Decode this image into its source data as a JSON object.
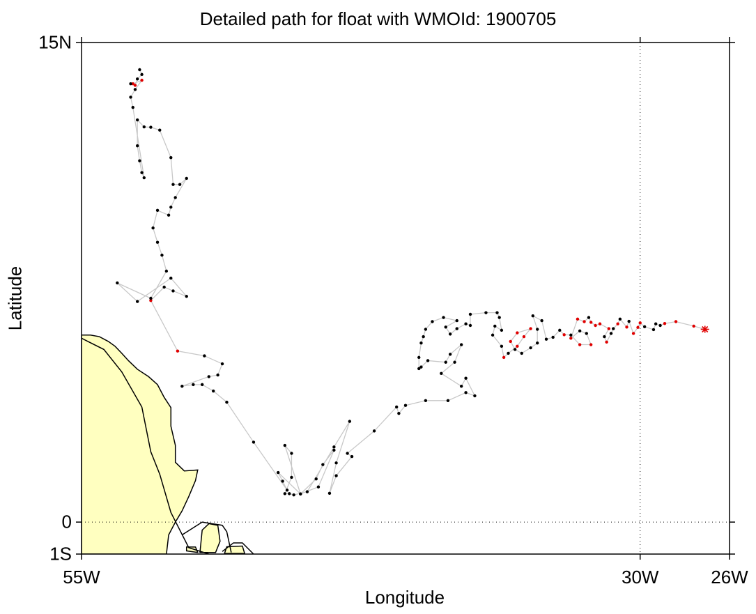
{
  "chart_data": {
    "type": "scatter",
    "title": "Detailed path for float with WMOId: 1900705",
    "xlabel": "Longitude",
    "ylabel": "Latitude",
    "xlim": [
      -55,
      -26
    ],
    "ylim": [
      -1,
      15
    ],
    "x_ticks": [
      {
        "value": -55,
        "label": "55W"
      },
      {
        "value": -30,
        "label": "30W"
      },
      {
        "value": -26,
        "label": "26W"
      }
    ],
    "y_ticks": [
      {
        "value": 15,
        "label": "15N"
      },
      {
        "value": 0,
        "label": "0"
      },
      {
        "value": -1,
        "label": "1S"
      }
    ],
    "gridlines": [
      {
        "axis": "x",
        "value": -30,
        "style": "dotted"
      },
      {
        "axis": "y",
        "value": 0,
        "style": "dotted"
      }
    ],
    "colors": {
      "land": "#ffffc0",
      "track": "#c8c8c8",
      "normal_point": "#000000",
      "highlight_point": "#e00000",
      "start_marker": "#e00000"
    },
    "series": [
      {
        "points": [
          [
            -27.1,
            6.03
          ],
          [
            -27.6,
            6.13
          ],
          [
            -28.4,
            6.27
          ],
          [
            -28.9,
            6.21
          ],
          [
            -29.1,
            6.15
          ],
          [
            -29.3,
            6.2
          ],
          [
            -29.4,
            6.02
          ],
          [
            -29.8,
            6.11
          ],
          [
            -30.0,
            6.23
          ],
          [
            -30.1,
            6.09
          ],
          [
            -30.3,
            5.9
          ],
          [
            -30.5,
            6.28
          ],
          [
            -30.6,
            6.1
          ],
          [
            -30.9,
            6.35
          ],
          [
            -31.0,
            6.2
          ],
          [
            -31.2,
            6.05
          ],
          [
            -31.3,
            5.9
          ],
          [
            -31.5,
            5.63
          ],
          [
            -31.6,
            5.8
          ],
          [
            -31.4,
            6.05
          ],
          [
            -31.8,
            6.2
          ],
          [
            -32.0,
            6.15
          ],
          [
            -32.2,
            6.25
          ],
          [
            -32.3,
            6.4
          ],
          [
            -32.5,
            6.27
          ],
          [
            -32.8,
            6.35
          ],
          [
            -33.1,
            5.75
          ],
          [
            -32.7,
            5.98
          ],
          [
            -32.4,
            5.9
          ],
          [
            -32.2,
            5.55
          ],
          [
            -32.7,
            5.55
          ],
          [
            -33.1,
            5.85
          ],
          [
            -33.4,
            5.86
          ],
          [
            -33.6,
            6.0
          ],
          [
            -33.9,
            5.78
          ],
          [
            -34.2,
            5.72
          ],
          [
            -34.4,
            6.3
          ],
          [
            -34.8,
            6.45
          ],
          [
            -34.6,
            6.03
          ],
          [
            -34.6,
            5.6
          ],
          [
            -34.9,
            5.45
          ],
          [
            -35.3,
            5.28
          ],
          [
            -35.6,
            5.4
          ],
          [
            -35.8,
            5.65
          ],
          [
            -35.5,
            5.92
          ],
          [
            -34.9,
            6.05
          ],
          [
            -35.2,
            5.8
          ],
          [
            -35.5,
            5.5
          ],
          [
            -35.9,
            5.28
          ],
          [
            -36.1,
            5.15
          ],
          [
            -36.2,
            5.5
          ],
          [
            -36.6,
            5.85
          ],
          [
            -36.5,
            6.13
          ],
          [
            -36.2,
            6.0
          ],
          [
            -36.3,
            6.4
          ],
          [
            -36.4,
            6.55
          ],
          [
            -36.9,
            6.55
          ],
          [
            -37.6,
            6.5
          ],
          [
            -37.6,
            6.15
          ],
          [
            -37.8,
            6.2
          ],
          [
            -38.2,
            6.05
          ],
          [
            -38.5,
            5.88
          ],
          [
            -38.7,
            6.1
          ],
          [
            -38.2,
            6.3
          ],
          [
            -38.8,
            6.4
          ],
          [
            -39.3,
            6.27
          ],
          [
            -39.6,
            6.03
          ],
          [
            -39.7,
            5.8
          ],
          [
            -39.8,
            5.6
          ],
          [
            -39.9,
            5.15
          ],
          [
            -39.9,
            4.8
          ],
          [
            -39.8,
            4.85
          ],
          [
            -39.5,
            5.05
          ],
          [
            -38.7,
            5.0
          ],
          [
            -38.5,
            5.25
          ],
          [
            -38.0,
            5.55
          ],
          [
            -38.3,
            5.0
          ],
          [
            -38.9,
            4.65
          ],
          [
            -38.0,
            4.25
          ],
          [
            -37.8,
            4.5
          ],
          [
            -37.4,
            3.95
          ],
          [
            -37.8,
            4.05
          ],
          [
            -38.6,
            3.8
          ],
          [
            -39.6,
            3.8
          ],
          [
            -40.5,
            3.65
          ],
          [
            -40.8,
            3.4
          ],
          [
            -40.9,
            3.6
          ],
          [
            -41.9,
            2.85
          ],
          [
            -43.1,
            2.15
          ],
          [
            -42.9,
            2.05
          ],
          [
            -43.6,
            1.45
          ],
          [
            -43.9,
            0.9
          ],
          [
            -43.6,
            1.85
          ],
          [
            -43.0,
            3.15
          ],
          [
            -43.7,
            2.35
          ],
          [
            -44.9,
            0.95
          ],
          [
            -45.5,
            0.85
          ],
          [
            -45.7,
            0.89
          ],
          [
            -45.9,
            0.89
          ],
          [
            -45.6,
            1.4
          ],
          [
            -45.6,
            2.15
          ],
          [
            -45.9,
            2.4
          ],
          [
            -45.2,
            0.88
          ],
          [
            -44.5,
            1.35
          ],
          [
            -44.2,
            1.8
          ],
          [
            -43.7,
            2.25
          ],
          [
            -44.4,
            1.1
          ],
          [
            -45.2,
            0.88
          ],
          [
            -46.2,
            1.55
          ],
          [
            -46.0,
            1.28
          ],
          [
            -45.8,
            1.0
          ],
          [
            -47.3,
            2.5
          ],
          [
            -48.5,
            3.75
          ],
          [
            -49.1,
            4.1
          ],
          [
            -49.6,
            4.3
          ],
          [
            -50.0,
            4.3
          ],
          [
            -50.5,
            4.25
          ],
          [
            -49.3,
            4.55
          ],
          [
            -48.9,
            4.6
          ],
          [
            -48.7,
            4.95
          ],
          [
            -49.5,
            5.2
          ],
          [
            -50.7,
            5.35
          ],
          [
            -51.9,
            6.93
          ],
          [
            -51.3,
            7.35
          ],
          [
            -50.9,
            7.23
          ],
          [
            -50.3,
            7.06
          ],
          [
            -51.0,
            7.63
          ],
          [
            -52.5,
            6.9
          ],
          [
            -53.4,
            7.48
          ],
          [
            -51.9,
            7.0
          ],
          [
            -51.2,
            7.85
          ],
          [
            -51.4,
            8.35
          ],
          [
            -51.6,
            8.75
          ],
          [
            -51.8,
            9.2
          ],
          [
            -51.6,
            9.75
          ],
          [
            -51.1,
            9.6
          ],
          [
            -51.0,
            9.85
          ],
          [
            -50.8,
            10.15
          ],
          [
            -50.3,
            10.75
          ],
          [
            -50.6,
            10.56
          ],
          [
            -50.9,
            10.56
          ],
          [
            -51.0,
            11.4
          ],
          [
            -51.5,
            12.26
          ],
          [
            -51.9,
            12.35
          ],
          [
            -52.2,
            12.36
          ],
          [
            -52.5,
            12.58
          ],
          [
            -52.5,
            11.77
          ],
          [
            -52.4,
            11.3
          ],
          [
            -52.3,
            10.93
          ],
          [
            -52.2,
            10.77
          ],
          [
            -52.7,
            12.97
          ],
          [
            -52.8,
            13.29
          ],
          [
            -52.6,
            13.53
          ],
          [
            -52.3,
            13.82
          ],
          [
            -52.7,
            13.71
          ],
          [
            -52.8,
            13.71
          ],
          [
            -52.6,
            13.66
          ],
          [
            -52.5,
            13.86
          ],
          [
            -52.3,
            14.0
          ],
          [
            -52.4,
            14.15
          ]
        ],
        "highlighted_indices": [
          0,
          1,
          2,
          3,
          8,
          9,
          10,
          12,
          14,
          17,
          19,
          20,
          21,
          22,
          24,
          25,
          26,
          29,
          30,
          32,
          43,
          44,
          45,
          46,
          47,
          49,
          121,
          122,
          153,
          154,
          156
        ],
        "start_marker": "asterisk"
      }
    ],
    "land": [
      {
        "name": "south-america",
        "polygon": [
          [
            -55.0,
            5.85
          ],
          [
            -54.6,
            5.85
          ],
          [
            -54.2,
            5.8
          ],
          [
            -53.8,
            5.65
          ],
          [
            -53.5,
            5.5
          ],
          [
            -53.2,
            5.28
          ],
          [
            -52.9,
            5.05
          ],
          [
            -52.5,
            4.78
          ],
          [
            -52.0,
            4.55
          ],
          [
            -51.6,
            4.3
          ],
          [
            -51.3,
            3.9
          ],
          [
            -51.0,
            3.58
          ],
          [
            -51.0,
            3.0
          ],
          [
            -50.8,
            2.4
          ],
          [
            -50.8,
            1.87
          ],
          [
            -50.4,
            1.6
          ],
          [
            -49.8,
            1.63
          ],
          [
            -49.9,
            1.3
          ],
          [
            -50.2,
            0.8
          ],
          [
            -50.5,
            0.35
          ],
          [
            -50.8,
            0.0
          ],
          [
            -51.1,
            -0.4
          ],
          [
            -51.2,
            -1.0
          ],
          [
            -55.0,
            -1.0
          ]
        ]
      },
      {
        "name": "marajo-island",
        "polygon": [
          [
            -49.7,
            -0.95
          ],
          [
            -49.6,
            -0.25
          ],
          [
            -49.3,
            -0.05
          ],
          [
            -48.9,
            -0.1
          ],
          [
            -48.8,
            -0.6
          ],
          [
            -49.0,
            -0.95
          ]
        ]
      },
      {
        "name": "small-island",
        "polygon": [
          [
            -50.3,
            -0.9
          ],
          [
            -50.3,
            -0.78
          ],
          [
            -49.9,
            -0.78
          ],
          [
            -49.8,
            -0.95
          ]
        ]
      },
      {
        "name": "southern-coast",
        "polygon": [
          [
            -48.6,
            -0.98
          ],
          [
            -48.5,
            -0.77
          ],
          [
            -47.8,
            -0.75
          ],
          [
            -47.7,
            -0.98
          ]
        ]
      }
    ],
    "coastline": [
      [
        [
          -55.0,
          5.75
        ],
        [
          -54.0,
          5.4
        ],
        [
          -53.2,
          4.7
        ],
        [
          -52.3,
          3.6
        ],
        [
          -51.9,
          2.2
        ],
        [
          -51.5,
          1.5
        ],
        [
          -51.0,
          0.3
        ],
        [
          -50.2,
          -0.8
        ],
        [
          -49.3,
          -1.0
        ]
      ],
      [
        [
          -50.5,
          -0.4
        ],
        [
          -49.6,
          0.0
        ],
        [
          -48.7,
          -0.1
        ],
        [
          -48.5,
          -0.3
        ],
        [
          -48.3,
          -0.95
        ]
      ],
      [
        [
          -48.7,
          -0.92
        ],
        [
          -48.2,
          -0.65
        ],
        [
          -47.8,
          -0.65
        ],
        [
          -47.3,
          -1.0
        ]
      ]
    ],
    "grid": "dotted lines at 30W and 0",
    "legend": "none"
  }
}
